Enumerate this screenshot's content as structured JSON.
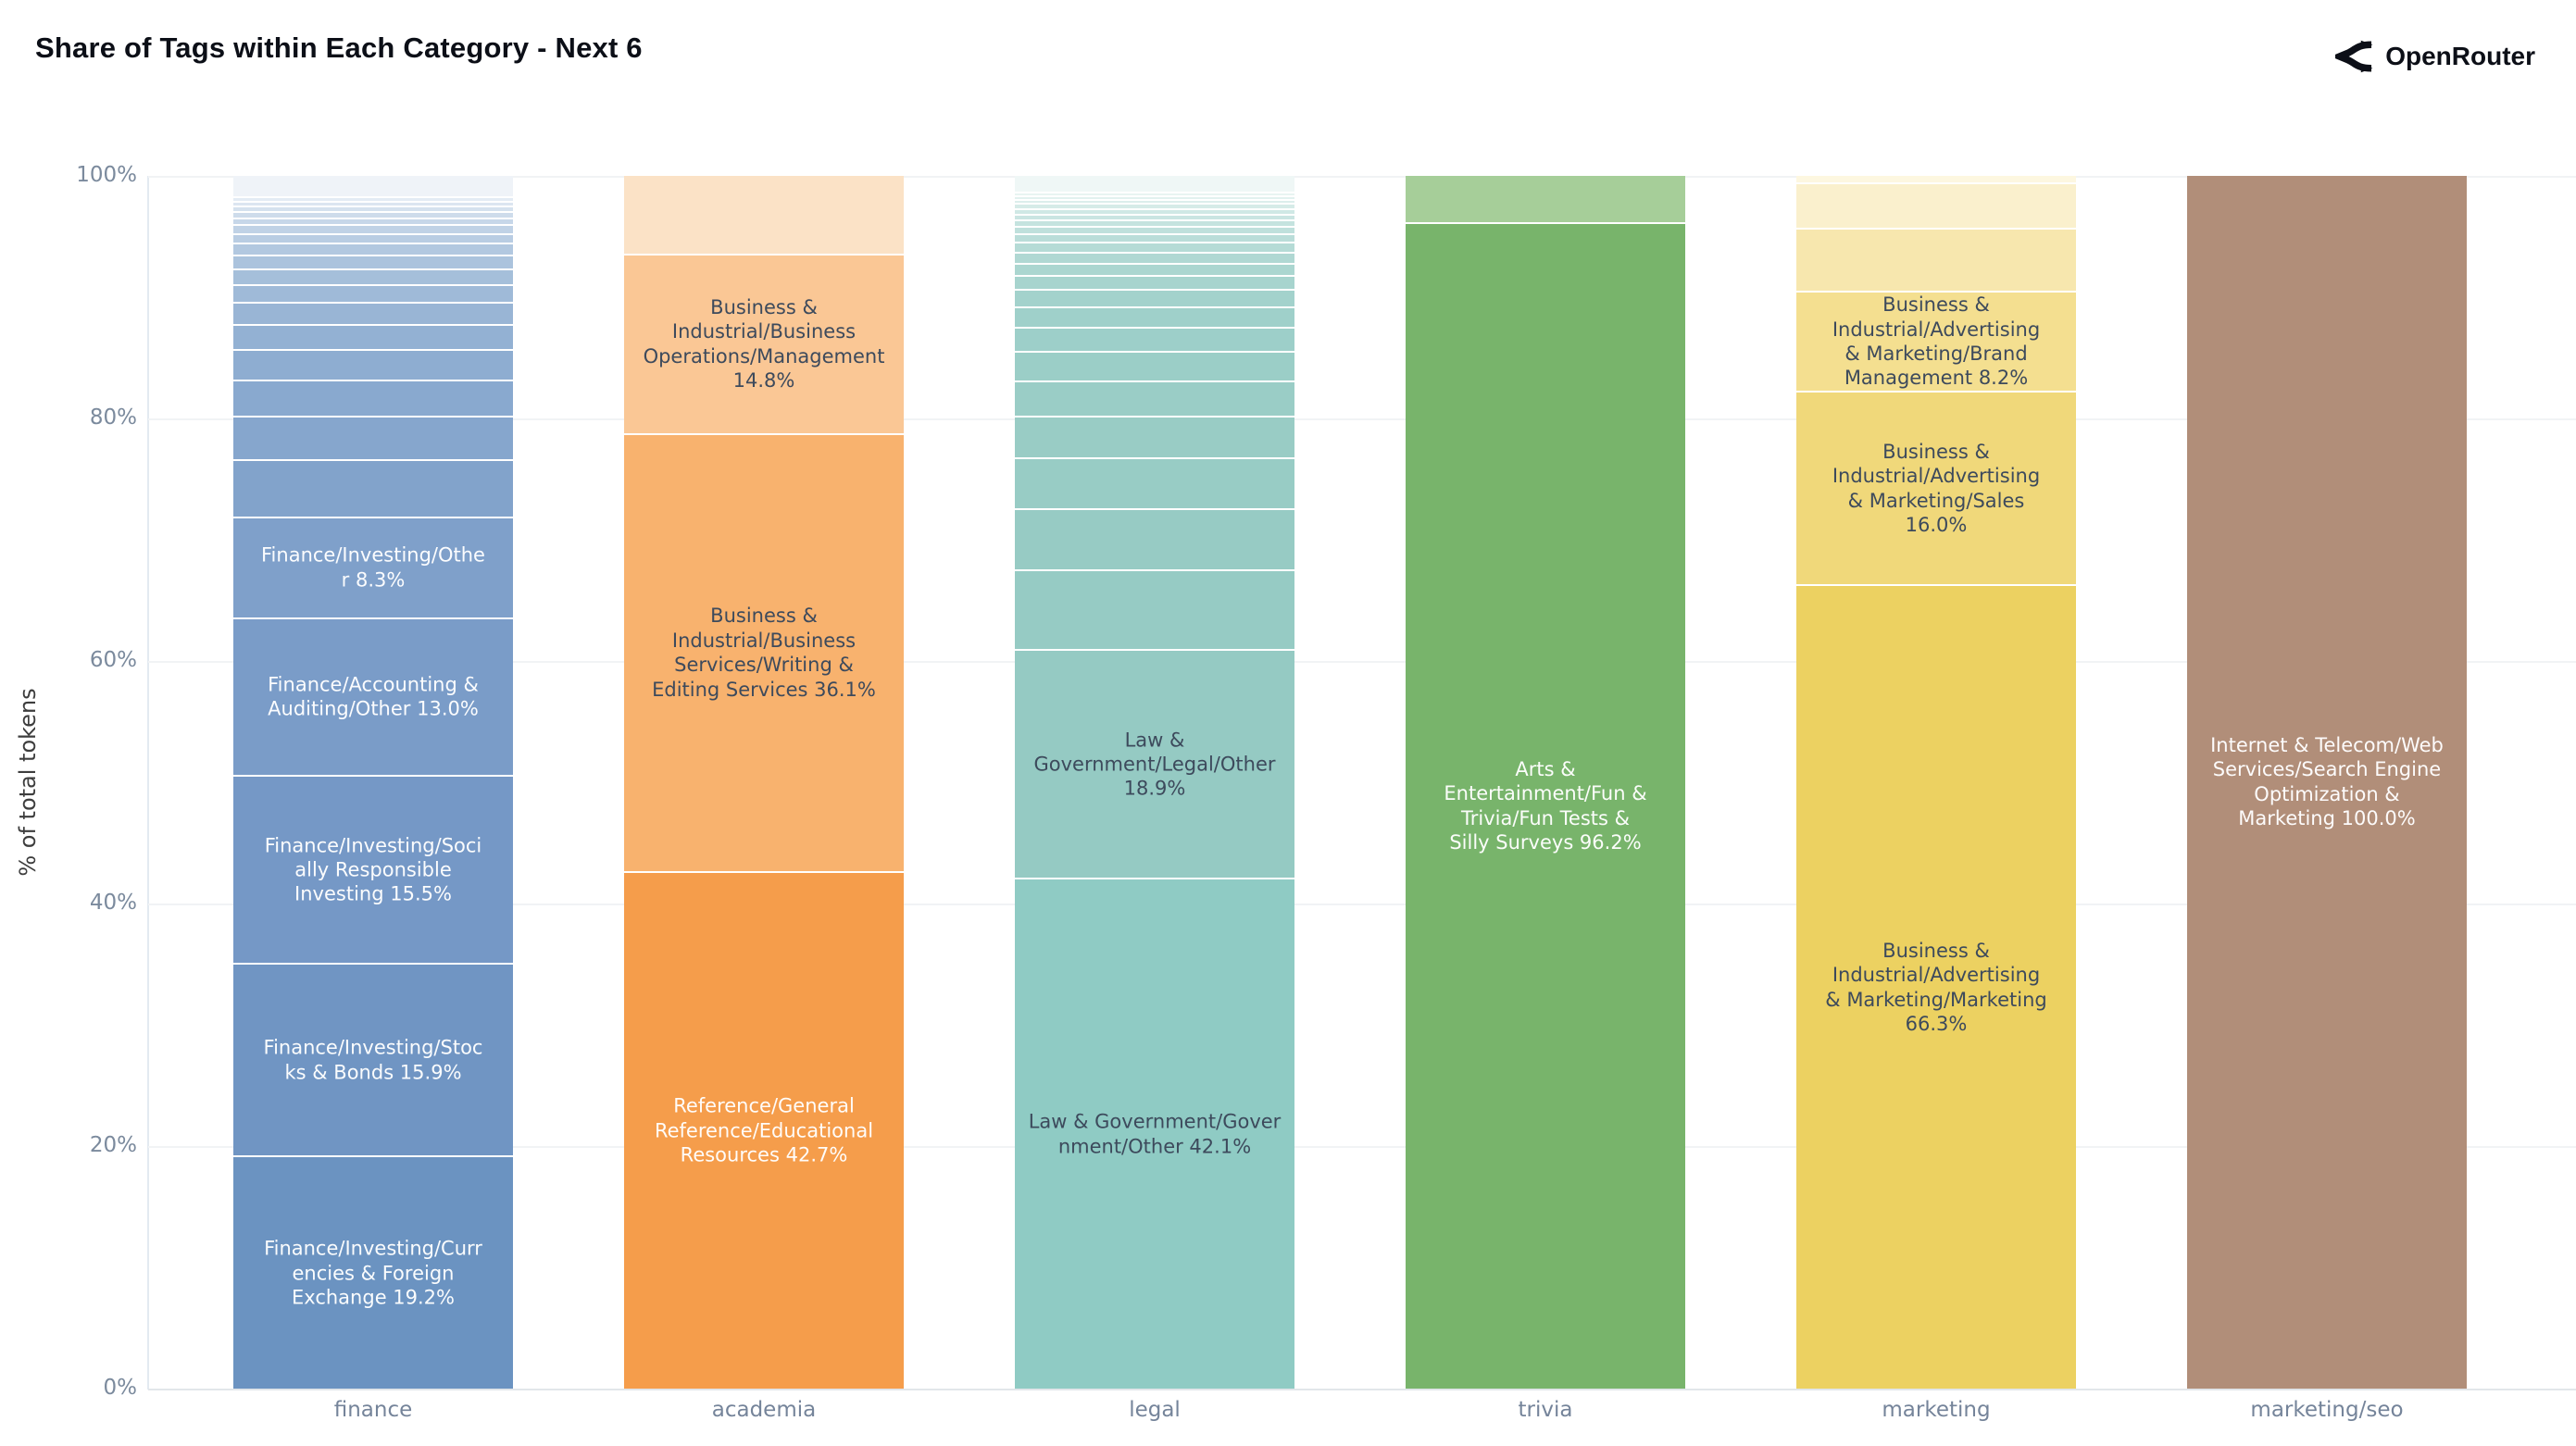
{
  "header": {
    "title": "Share of Tags within Each Category - Next 6",
    "brand": "OpenRouter"
  },
  "y_axis": {
    "title": "% of total tokens",
    "ticks": [
      {
        "label": "0%",
        "pct": 0
      },
      {
        "label": "20%",
        "pct": 20
      },
      {
        "label": "40%",
        "pct": 40
      },
      {
        "label": "60%",
        "pct": 60
      },
      {
        "label": "80%",
        "pct": 80
      },
      {
        "label": "100%",
        "pct": 100
      }
    ]
  },
  "colors": {
    "background": "#ffffff",
    "gridline": "#f1f3f5",
    "axis_text": "#7b8a9d",
    "title_text": "#0c0f17",
    "dark_label": "#3d4a5c",
    "light_label": "#ffffff"
  },
  "chart_data": {
    "type": "bar",
    "stacked": true,
    "normalized": true,
    "title": "Share of Tags within Each Category - Next 6",
    "xlabel": "",
    "ylabel": "% of total tokens",
    "ylim": [
      0,
      100
    ],
    "grid": true,
    "legend": false,
    "categories": [
      "finance",
      "academia",
      "legal",
      "trivia",
      "marketing",
      "marketing/seo"
    ],
    "bars": [
      {
        "category": "finance",
        "segments": [
          {
            "label": null,
            "pct": 1.7,
            "color": "#eff3f8"
          },
          {
            "label": null,
            "pct": 0.35,
            "color": "#e3ebf4"
          },
          {
            "label": null,
            "pct": 0.4,
            "color": "#dce6f1"
          },
          {
            "label": null,
            "pct": 0.45,
            "color": "#d5e1ee"
          },
          {
            "label": null,
            "pct": 0.5,
            "color": "#cedceb"
          },
          {
            "label": null,
            "pct": 0.6,
            "color": "#c7d7e9"
          },
          {
            "label": null,
            "pct": 0.7,
            "color": "#c0d2e6"
          },
          {
            "label": null,
            "pct": 0.8,
            "color": "#b9cde3"
          },
          {
            "label": null,
            "pct": 1.0,
            "color": "#b2c8e0"
          },
          {
            "label": null,
            "pct": 1.1,
            "color": "#abc3dd"
          },
          {
            "label": null,
            "pct": 1.3,
            "color": "#a5bfda"
          },
          {
            "label": null,
            "pct": 1.5,
            "color": "#9fbad8"
          },
          {
            "label": null,
            "pct": 1.8,
            "color": "#99b5d5"
          },
          {
            "label": null,
            "pct": 2.1,
            "color": "#93b1d3"
          },
          {
            "label": null,
            "pct": 2.5,
            "color": "#8eadd1"
          },
          {
            "label": null,
            "pct": 3.0,
            "color": "#89a9cf"
          },
          {
            "label": null,
            "pct": 3.6,
            "color": "#86a6cd"
          },
          {
            "label": null,
            "pct": 4.7,
            "color": "#82a3cb"
          },
          {
            "label": "Finance/Investing/Other",
            "pct": 8.3,
            "color": "#7fa0ca",
            "text": "light",
            "lines": [
              "Finance/Investing/Othe",
              "r 8.3%"
            ]
          },
          {
            "label": "Finance/Accounting & Auditing/Other",
            "pct": 13.0,
            "color": "#7a9cc8",
            "text": "light",
            "lines": [
              "Finance/Accounting &",
              "Auditing/Other 13.0%"
            ]
          },
          {
            "label": "Finance/Investing/Socially Responsible Investing",
            "pct": 15.5,
            "color": "#7598c6",
            "text": "light",
            "lines": [
              "Finance/Investing/Soci",
              "ally Responsible",
              "Investing 15.5%"
            ]
          },
          {
            "label": "Finance/Investing/Stocks & Bonds",
            "pct": 15.9,
            "color": "#7095c3",
            "text": "light",
            "lines": [
              "Finance/Investing/Stoc",
              "ks & Bonds 15.9%"
            ]
          },
          {
            "label": "Finance/Investing/Currencies & Foreign Exchange",
            "pct": 19.2,
            "color": "#6b93c1",
            "text": "light",
            "lines": [
              "Finance/Investing/Curr",
              "encies & Foreign",
              "Exchange 19.2%"
            ]
          }
        ]
      },
      {
        "category": "academia",
        "segments": [
          {
            "label": null,
            "pct": 6.4,
            "color": "#fbe2c6"
          },
          {
            "label": "Business & Industrial/Business Operations/Management",
            "pct": 14.8,
            "color": "#fac795",
            "text": "dark",
            "lines": [
              "Business &",
              "Industrial/Business",
              "Operations/Management",
              "14.8%"
            ]
          },
          {
            "label": "Business & Industrial/Business Services/Writing & Editing Services",
            "pct": 36.1,
            "color": "#f8b26e",
            "text": "dark",
            "lines": [
              "Business &",
              "Industrial/Business",
              "Services/Writing &",
              "Editing Services 36.1%"
            ]
          },
          {
            "label": "Reference/General Reference/Educational Resources",
            "pct": 42.7,
            "color": "#f59d4b",
            "text": "light",
            "lines": [
              "Reference/General",
              "Reference/Educational",
              "Resources 42.7%"
            ]
          }
        ]
      },
      {
        "category": "legal",
        "segments": [
          {
            "label": null,
            "pct": 1.3,
            "color": "#eff7f6"
          },
          {
            "label": null,
            "pct": 0.3,
            "color": "#e8f4f2"
          },
          {
            "label": null,
            "pct": 0.3,
            "color": "#e2f1ef"
          },
          {
            "label": null,
            "pct": 0.35,
            "color": "#dceeec"
          },
          {
            "label": null,
            "pct": 0.4,
            "color": "#d6ebe8"
          },
          {
            "label": null,
            "pct": 0.45,
            "color": "#d0e8e5"
          },
          {
            "label": null,
            "pct": 0.5,
            "color": "#cae5e2"
          },
          {
            "label": null,
            "pct": 0.55,
            "color": "#c5e3df"
          },
          {
            "label": null,
            "pct": 0.6,
            "color": "#bfe0dc"
          },
          {
            "label": null,
            "pct": 0.7,
            "color": "#baddd9"
          },
          {
            "label": null,
            "pct": 0.8,
            "color": "#b5dbd6"
          },
          {
            "label": null,
            "pct": 0.9,
            "color": "#b0d8d3"
          },
          {
            "label": null,
            "pct": 1.0,
            "color": "#abd6d0"
          },
          {
            "label": null,
            "pct": 1.2,
            "color": "#a7d4ce"
          },
          {
            "label": null,
            "pct": 1.4,
            "color": "#a3d2cc"
          },
          {
            "label": null,
            "pct": 1.7,
            "color": "#9fd0ca"
          },
          {
            "label": null,
            "pct": 2.0,
            "color": "#9dcfc9"
          },
          {
            "label": null,
            "pct": 2.4,
            "color": "#9bcec7"
          },
          {
            "label": null,
            "pct": 2.9,
            "color": "#9acdc6"
          },
          {
            "label": null,
            "pct": 3.5,
            "color": "#99ccc5"
          },
          {
            "label": null,
            "pct": 4.2,
            "color": "#98ccc5"
          },
          {
            "label": null,
            "pct": 5.0,
            "color": "#97cbc4"
          },
          {
            "label": null,
            "pct": 6.55,
            "color": "#96cbc4"
          },
          {
            "label": "Law & Government/Legal/Other",
            "pct": 18.9,
            "color": "#95cac3",
            "text": "dark",
            "lines": [
              "Law &",
              "Government/Legal/Other",
              "18.9%"
            ]
          },
          {
            "label": "Law & Government/Government/Other",
            "pct": 42.1,
            "color": "#8fcbc4",
            "text": "dark",
            "lines": [
              "Law & Government/Gover",
              "nment/Other 42.1%"
            ]
          }
        ]
      },
      {
        "category": "trivia",
        "segments": [
          {
            "label": null,
            "pct": 3.8,
            "color": "#a6ce99"
          },
          {
            "label": "Arts & Entertainment/Fun & Trivia/Fun Tests & Silly Surveys",
            "pct": 96.2,
            "color": "#78b46b",
            "text": "light",
            "lines": [
              "Arts &",
              "Entertainment/Fun &",
              "Trivia/Fun Tests &",
              "Silly Surveys 96.2%"
            ]
          }
        ]
      },
      {
        "category": "marketing",
        "segments": [
          {
            "label": null,
            "pct": 0.5,
            "color": "#fdf7e0"
          },
          {
            "label": null,
            "pct": 3.8,
            "color": "#faf0cd"
          },
          {
            "label": null,
            "pct": 5.2,
            "color": "#f7e7ae"
          },
          {
            "label": "Business & Industrial/Advertising & Marketing/Brand Management",
            "pct": 8.2,
            "color": "#f4df90",
            "text": "dark",
            "lines": [
              "Business &",
              "Industrial/Advertising",
              "& Marketing/Brand",
              "Management 8.2%"
            ]
          },
          {
            "label": "Business & Industrial/Advertising & Marketing/Sales",
            "pct": 16.0,
            "color": "#f0d87a",
            "text": "dark",
            "lines": [
              "Business &",
              "Industrial/Advertising",
              "& Marketing/Sales",
              "16.0%"
            ]
          },
          {
            "label": "Business & Industrial/Advertising & Marketing/Marketing",
            "pct": 66.3,
            "color": "#ecd161",
            "text": "dark",
            "lines": [
              "Business &",
              "Industrial/Advertising",
              "& Marketing/Marketing",
              "66.3%"
            ]
          }
        ]
      },
      {
        "category": "marketing/seo",
        "segments": [
          {
            "label": "Internet & Telecom/Web Services/Search Engine Optimization & Marketing",
            "pct": 100.0,
            "color": "#b18e79",
            "text": "light",
            "lines": [
              "Internet & Telecom/Web",
              "Services/Search Engine",
              "Optimization &",
              "Marketing 100.0%"
            ]
          }
        ]
      }
    ]
  }
}
